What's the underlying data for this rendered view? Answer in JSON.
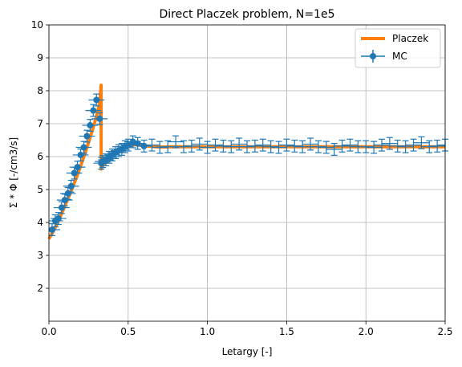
{
  "chart_data": {
    "type": "line",
    "title": "Direct Placzek problem, N=1e5",
    "xlabel": "Letargy [-]",
    "ylabel": "Σ * Φ [-/cm3/s]",
    "xlim": [
      0,
      2.5
    ],
    "ylim": [
      1,
      10
    ],
    "x_ticks": [
      0,
      0.5,
      1,
      1.5,
      2,
      2.5
    ],
    "x_tick_labels": [
      "0.0",
      "0.5",
      "1.0",
      "1.5",
      "2.0",
      "2.5"
    ],
    "y_ticks": [
      2,
      3,
      4,
      5,
      6,
      7,
      8,
      9,
      10
    ],
    "y_tick_labels": [
      "2",
      "3",
      "4",
      "5",
      "6",
      "7",
      "8",
      "9",
      "10"
    ],
    "grid": true,
    "legend_position": "top-right",
    "series": [
      {
        "name": "Placzek",
        "kind": "line",
        "color": "#ff7f0e",
        "x": [
          0.0,
          0.03,
          0.06,
          0.09,
          0.12,
          0.15,
          0.18,
          0.21,
          0.24,
          0.27,
          0.3,
          0.32,
          0.3296,
          0.3296,
          0.335,
          0.35,
          0.38,
          0.41,
          0.44,
          0.47,
          0.5,
          0.55,
          0.6,
          0.7,
          0.8,
          1.0,
          1.2,
          1.5,
          1.8,
          2.1,
          2.5
        ],
        "y": [
          3.5,
          3.75,
          4.05,
          4.38,
          4.72,
          5.07,
          5.45,
          5.85,
          6.28,
          6.74,
          7.22,
          7.62,
          8.17,
          5.62,
          5.7,
          5.78,
          5.9,
          6.05,
          6.2,
          6.3,
          6.35,
          6.36,
          6.33,
          6.29,
          6.3,
          6.3,
          6.3,
          6.3,
          6.3,
          6.3,
          6.3
        ]
      },
      {
        "name": "MC",
        "kind": "errorbar",
        "color": "#1f77b4",
        "x": [
          0.02,
          0.04,
          0.06,
          0.08,
          0.1,
          0.12,
          0.14,
          0.16,
          0.18,
          0.2,
          0.22,
          0.24,
          0.26,
          0.28,
          0.3,
          0.32,
          0.33,
          0.34,
          0.36,
          0.38,
          0.4,
          0.42,
          0.44,
          0.46,
          0.48,
          0.5,
          0.53,
          0.56,
          0.6,
          0.65,
          0.7,
          0.75,
          0.8,
          0.85,
          0.9,
          0.95,
          1.0,
          1.05,
          1.1,
          1.15,
          1.2,
          1.25,
          1.3,
          1.35,
          1.4,
          1.45,
          1.5,
          1.55,
          1.6,
          1.65,
          1.7,
          1.75,
          1.8,
          1.85,
          1.9,
          1.95,
          2.0,
          2.05,
          2.1,
          2.15,
          2.2,
          2.25,
          2.3,
          2.35,
          2.4,
          2.45,
          2.5
        ],
        "y": [
          3.78,
          4.05,
          4.12,
          4.45,
          4.68,
          4.88,
          5.1,
          5.5,
          5.68,
          6.05,
          6.28,
          6.62,
          6.95,
          7.4,
          7.72,
          7.15,
          5.8,
          5.85,
          5.9,
          5.98,
          6.05,
          6.12,
          6.18,
          6.22,
          6.3,
          6.35,
          6.45,
          6.4,
          6.32,
          6.35,
          6.28,
          6.3,
          6.45,
          6.3,
          6.32,
          6.38,
          6.28,
          6.35,
          6.32,
          6.3,
          6.38,
          6.3,
          6.32,
          6.35,
          6.3,
          6.28,
          6.35,
          6.32,
          6.3,
          6.38,
          6.3,
          6.28,
          6.22,
          6.32,
          6.35,
          6.3,
          6.3,
          6.28,
          6.35,
          6.4,
          6.32,
          6.3,
          6.35,
          6.42,
          6.3,
          6.32,
          6.35
        ],
        "xerr": 0.05,
        "yerr": 0.18
      }
    ]
  }
}
